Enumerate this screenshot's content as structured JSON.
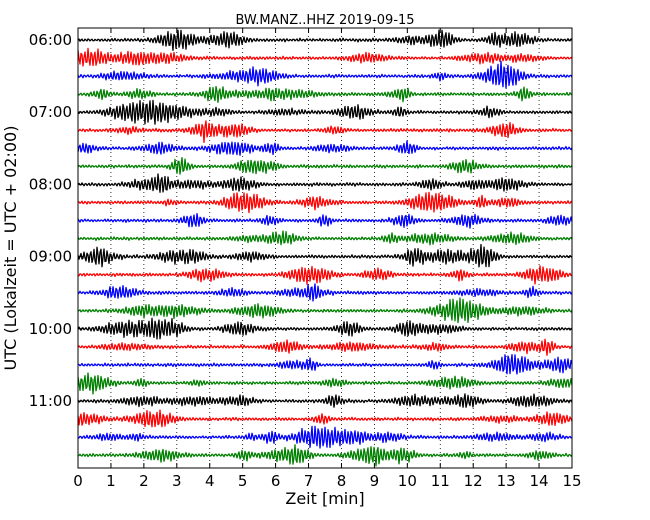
{
  "chart_data": {
    "type": "line",
    "subtype": "dayplot",
    "title": "BW.MANZ..HHZ 2019-09-15",
    "xlabel": "Zeit  [min]",
    "ylabel": "UTC (Lokalzeit = UTC + 02:00)",
    "xlim": [
      0,
      15
    ],
    "x_ticks": [
      "0",
      "1",
      "2",
      "3",
      "4",
      "5",
      "6",
      "7",
      "8",
      "9",
      "10",
      "11",
      "12",
      "13",
      "14",
      "15"
    ],
    "y_ticks": [
      "06:00",
      "07:00",
      "08:00",
      "09:00",
      "10:00",
      "11:00"
    ],
    "trace_colors": [
      "#000000",
      "#ff0000",
      "#0000ff",
      "#008000"
    ],
    "trace_interval_min": 15,
    "trace_count": 24,
    "vertical_grid": "dotted",
    "traces": [
      "06:00",
      "06:15",
      "06:30",
      "06:45",
      "07:00",
      "07:15",
      "07:30",
      "07:45",
      "08:00",
      "08:15",
      "08:30",
      "08:45",
      "09:00",
      "09:15",
      "09:30",
      "09:45",
      "10:00",
      "10:15",
      "10:30",
      "10:45",
      "11:00",
      "11:15",
      "11:30",
      "11:45"
    ]
  }
}
